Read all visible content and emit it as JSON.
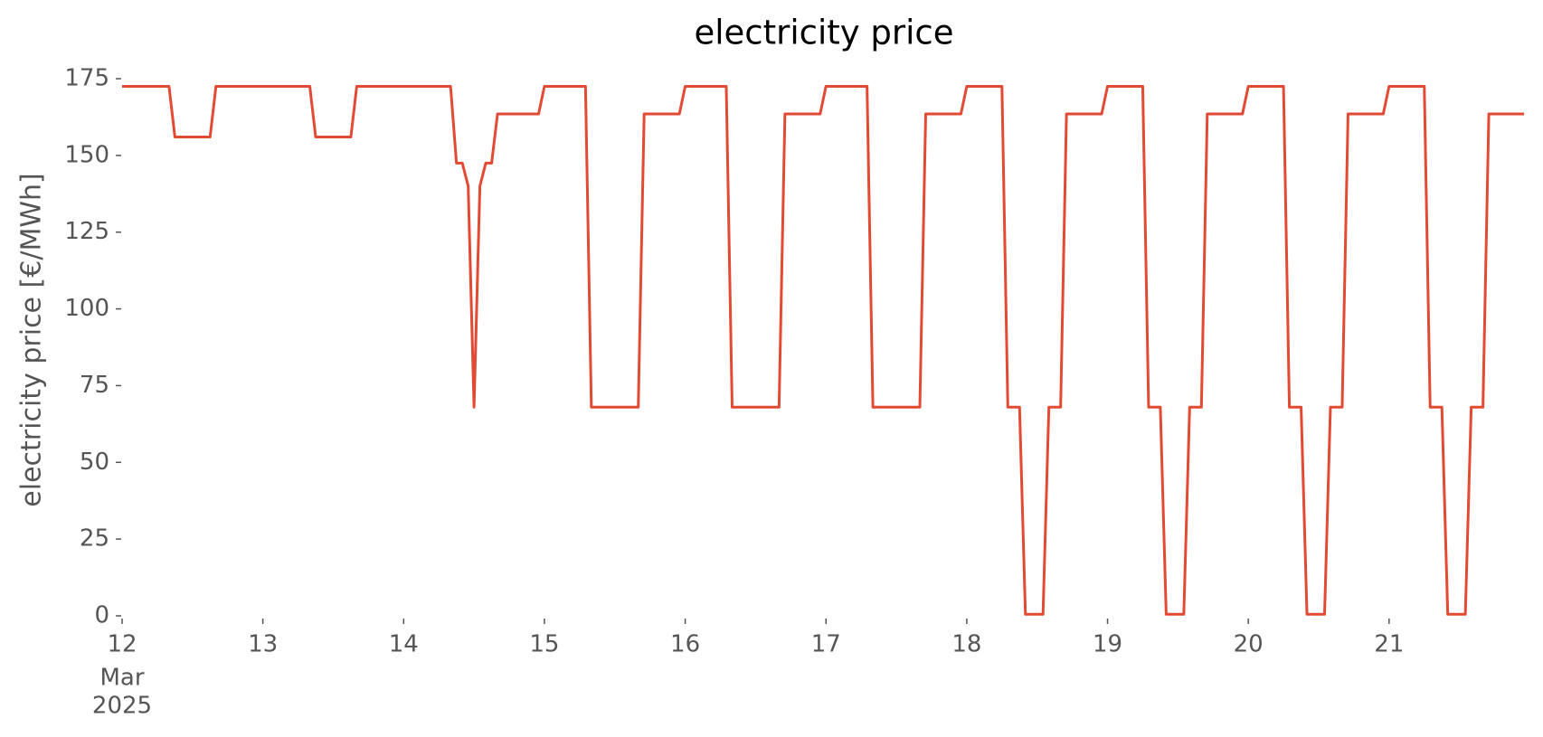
{
  "chart_data": {
    "type": "line",
    "title": "electricity price",
    "ylabel": "electricity price [€/MWh]",
    "x_month_label": "Mar",
    "x_year_label": "2025",
    "x": [
      0,
      8,
      9,
      15,
      16,
      32,
      33,
      39,
      40,
      56,
      57,
      58,
      59,
      60,
      61,
      62,
      63,
      64,
      71,
      72,
      79,
      80,
      88,
      89,
      95,
      96,
      103,
      104,
      112,
      113,
      119,
      120,
      127,
      128,
      136,
      137,
      143,
      144,
      150,
      151,
      153,
      154,
      157,
      158,
      160,
      161,
      167,
      168,
      174,
      175,
      177,
      178,
      181,
      182,
      184,
      185,
      191,
      192,
      198,
      199,
      201,
      202,
      205,
      206,
      208,
      209,
      215,
      216,
      222,
      223,
      225,
      226,
      229,
      230,
      232,
      233,
      239
    ],
    "series": [
      {
        "name": "electricity price",
        "color": "#e24a33",
        "values": [
          172.5,
          172.5,
          156,
          156,
          172.5,
          172.5,
          156,
          156,
          172.5,
          172.5,
          147.5,
          147.5,
          140,
          68,
          140,
          147.5,
          147.5,
          163.5,
          163.5,
          172.5,
          172.5,
          68,
          68,
          163.5,
          163.5,
          172.5,
          172.5,
          68,
          68,
          163.5,
          163.5,
          172.5,
          172.5,
          68,
          68,
          163.5,
          163.5,
          172.5,
          172.5,
          68,
          68,
          0.5,
          0.5,
          68,
          68,
          163.5,
          163.5,
          172.5,
          172.5,
          68,
          68,
          0.5,
          0.5,
          68,
          68,
          163.5,
          163.5,
          172.5,
          172.5,
          68,
          68,
          0.5,
          0.5,
          68,
          68,
          163.5,
          163.5,
          172.5,
          172.5,
          68,
          68,
          0.5,
          0.5,
          68,
          68,
          163.5,
          163.5
        ]
      }
    ],
    "xlim": [
      0,
      239
    ],
    "xticks": [
      {
        "value": 0,
        "label": "12"
      },
      {
        "value": 24,
        "label": "13"
      },
      {
        "value": 48,
        "label": "14"
      },
      {
        "value": 72,
        "label": "15"
      },
      {
        "value": 96,
        "label": "16"
      },
      {
        "value": 120,
        "label": "17"
      },
      {
        "value": 144,
        "label": "18"
      },
      {
        "value": 168,
        "label": "19"
      },
      {
        "value": 192,
        "label": "20"
      },
      {
        "value": 216,
        "label": "21"
      }
    ],
    "ylim": [
      0,
      175
    ],
    "yticks": [
      0,
      25,
      50,
      75,
      100,
      125,
      150,
      175
    ],
    "grid": false
  }
}
